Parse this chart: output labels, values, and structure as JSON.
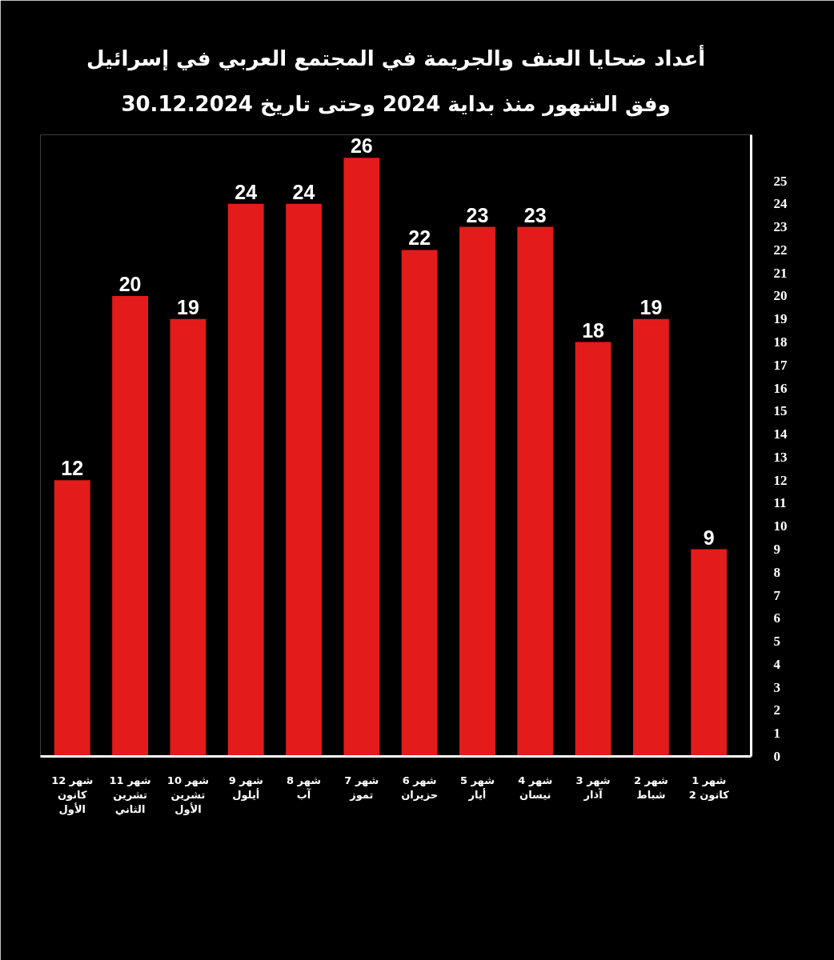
{
  "chart_data": {
    "type": "bar",
    "title": "أعداد ضحايا العنف والجريمة في المجتمع العربي في إسرائيل",
    "subtitle": "وفق الشهور منذ بداية 2024 وحتى تاريخ 30.12.2024",
    "categories": [
      "شهر 12 كانون الأول",
      "شهر 11 تشرين الثاني",
      "شهر 10 تشرين الأول",
      "شهر 9 أيلول",
      "شهر 8 آب",
      "شهر 7 تموز",
      "شهر 6 حزيران",
      "شهر 5 أيار",
      "شهر 4 نيسان",
      "شهر 3 آذار",
      "شهر 2 شباط",
      "شهر 1 كانون 2"
    ],
    "values": [
      12,
      20,
      19,
      24,
      24,
      26,
      22,
      23,
      23,
      18,
      19,
      9
    ],
    "color": "#e31b1b",
    "ylim": [
      0,
      27
    ],
    "yticks": [
      0,
      1,
      2,
      3,
      4,
      5,
      6,
      7,
      8,
      9,
      10,
      11,
      12,
      13,
      14,
      15,
      16,
      17,
      18,
      19,
      20,
      21,
      22,
      23,
      24,
      25
    ],
    "data_labels": true
  }
}
